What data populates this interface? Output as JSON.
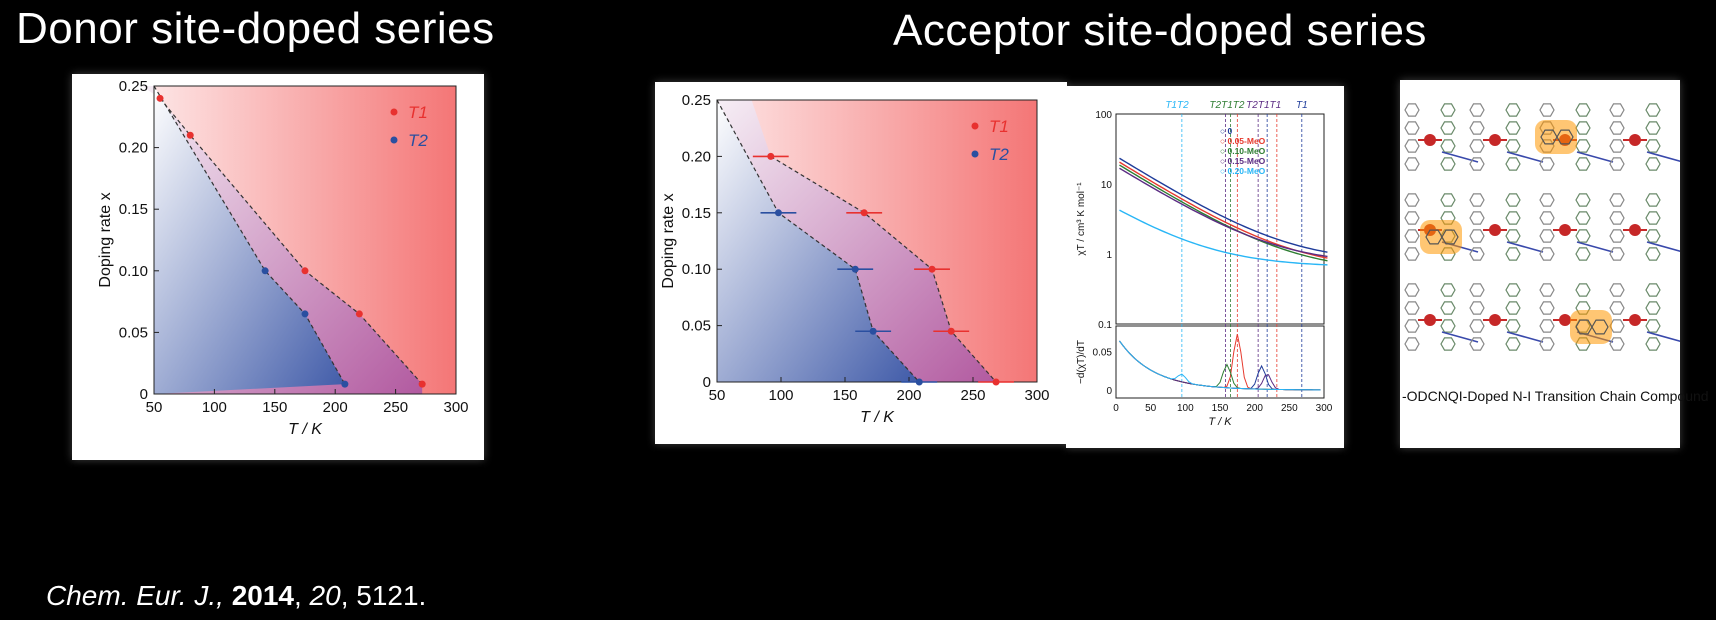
{
  "headings": {
    "donor": "Donor site-doped series",
    "acceptor": "Acceptor site-doped series"
  },
  "citation": {
    "journal": "Chem. Eur. J.,",
    "year": "2014",
    "volume": "20",
    "pages": ", 5121."
  },
  "chart_data": [
    {
      "type": "scatter",
      "title": "",
      "xlabel": "T / K",
      "ylabel": "Doping rate x",
      "xlim": [
        50,
        300
      ],
      "ylim": [
        0,
        0.25
      ],
      "xticks": [
        "50",
        "100",
        "150",
        "200",
        "250",
        "300"
      ],
      "yticks": [
        "0",
        "0.05",
        "0.10",
        "0.15",
        "0.20",
        "0.25"
      ],
      "legend_position": "top-right",
      "series": [
        {
          "name": "T1",
          "color": "#e8312f",
          "points": [
            [
              55,
              0.24
            ],
            [
              80,
              0.21
            ],
            [
              175,
              0.1
            ],
            [
              220,
              0.065
            ],
            [
              272,
              0.008
            ]
          ]
        },
        {
          "name": "T2",
          "color": "#2a4fa0",
          "points": [
            [
              142,
              0.1
            ],
            [
              175,
              0.065
            ],
            [
              208,
              0.008
            ]
          ]
        }
      ]
    },
    {
      "type": "scatter",
      "title": "",
      "xlabel": "T / K",
      "ylabel": "Doping rate x",
      "xlim": [
        50,
        300
      ],
      "ylim": [
        0,
        0.25
      ],
      "xticks": [
        "50",
        "100",
        "150",
        "200",
        "250",
        "300"
      ],
      "yticks": [
        "0",
        "0.05",
        "0.10",
        "0.15",
        "0.20",
        "0.25"
      ],
      "legend_position": "top-right",
      "series": [
        {
          "name": "T1",
          "color": "#e8312f",
          "points": [
            [
              92,
              0.2
            ],
            [
              165,
              0.15
            ],
            [
              218,
              0.1
            ],
            [
              233,
              0.045
            ],
            [
              268,
              0.0
            ]
          ]
        },
        {
          "name": "T2",
          "color": "#2a4fa0",
          "points": [
            [
              98,
              0.15
            ],
            [
              158,
              0.1
            ],
            [
              172,
              0.045
            ],
            [
              208,
              0.0
            ]
          ]
        }
      ]
    },
    {
      "type": "line",
      "xlabel": "T / K",
      "ylabel_top": "χT / cm³ K mol⁻¹",
      "ylabel_bottom": "−d(χT)/dT",
      "xticks": [
        "0",
        "50",
        "100",
        "150",
        "200",
        "250",
        "300"
      ],
      "yticks_top": [
        "0.1",
        "1",
        "10",
        "100"
      ],
      "yticks_bottom": [
        "0",
        "0.05"
      ],
      "top_labels": [
        "T1T2",
        "T2T1T2",
        "T2T1T1",
        "T1"
      ],
      "legend": [
        "0",
        "0.05-MeO",
        "0.10-MeO",
        "0.15-MeO",
        "0.20-MeO"
      ],
      "legend_colors": [
        "#1f3c9a",
        "#e63a2e",
        "#2e7d32",
        "#5b2c83",
        "#29b6f6"
      ]
    }
  ],
  "structure_card": {
    "caption": "-ODCNQI-Doped N-I Transition Chain Compound"
  },
  "colors": {
    "t1": "#e8312f",
    "t2": "#2a4fa0",
    "red_region": "#f47a7a",
    "blue_region": "#3f5aa8"
  }
}
